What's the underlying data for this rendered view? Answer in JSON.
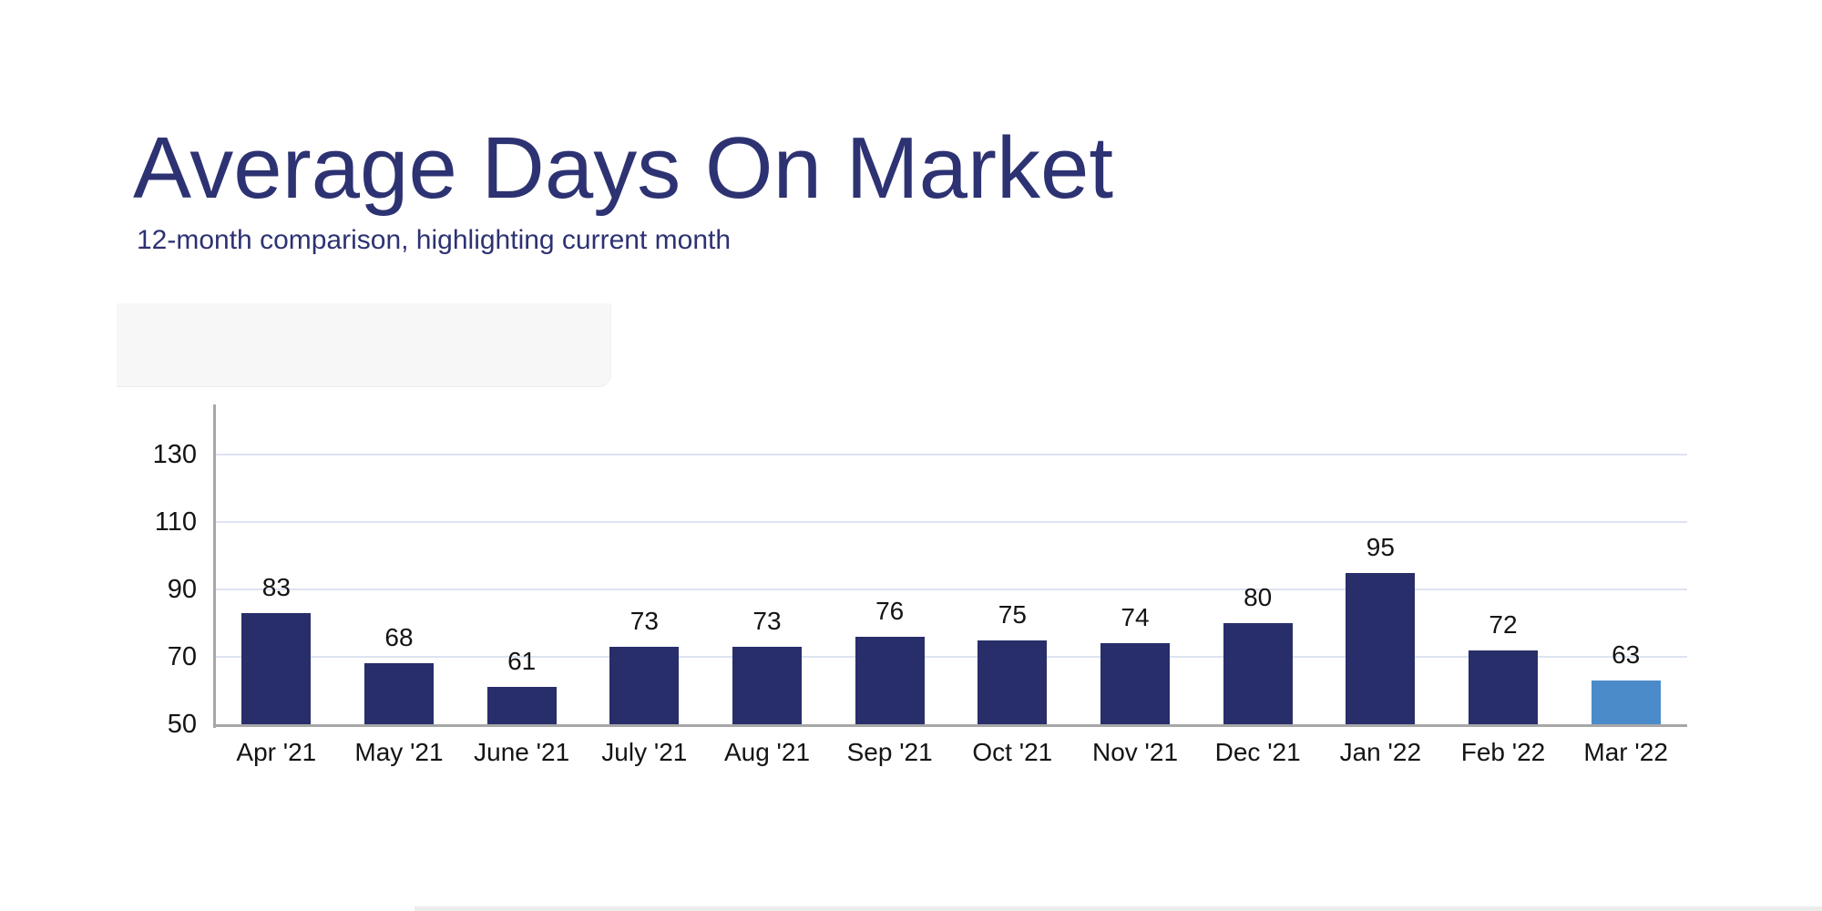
{
  "page": {
    "title": "Average Days On Market",
    "subtitle": "12-month comparison, highlighting current month"
  },
  "chart_data": {
    "type": "bar",
    "title": "Average Days On Market",
    "subtitle": "12-month comparison, highlighting current month",
    "categories": [
      "Apr '21",
      "May '21",
      "June '21",
      "July '21",
      "Aug '21",
      "Sep '21",
      "Oct '21",
      "Nov '21",
      "Dec '21",
      "Jan '22",
      "Feb '22",
      "Mar '22"
    ],
    "values": [
      83,
      68,
      61,
      73,
      73,
      76,
      75,
      74,
      80,
      95,
      72,
      63
    ],
    "value_labels_shown": true,
    "highlight_index": 11,
    "highlight_note": "current month",
    "xlabel": "",
    "ylabel": "",
    "ylim": [
      50,
      145
    ],
    "yticks": [
      50,
      70,
      90,
      110,
      130
    ],
    "grid": true,
    "legend_position": "none",
    "colors": {
      "bar": "#272e6a",
      "highlight_bar": "#4c8bc9",
      "title_text": "#2d3272",
      "subtitle_text": "#2d3272",
      "label_text": "#141414",
      "axis_line": "#a7a7a7",
      "gridline": "#dde3f1",
      "background": "#ffffff"
    }
  }
}
